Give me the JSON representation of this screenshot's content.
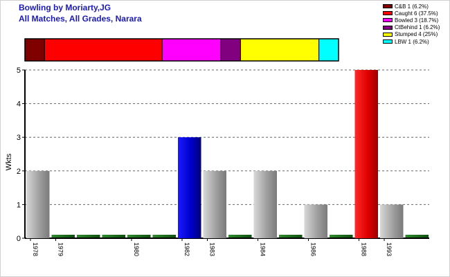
{
  "chart_data": [
    {
      "type": "bar",
      "title": "Bowling by Moriarty,JG",
      "subtitle": "All Matches, All Grades, Narara",
      "xlabel": "",
      "ylabel": "Wkts",
      "ylim": [
        0,
        5
      ],
      "yticks": [
        "0",
        "1",
        "2",
        "3",
        "4",
        "5"
      ],
      "grid": true,
      "categories": [
        "1978",
        "1979",
        "",
        "",
        "1980",
        "",
        "1982",
        "1983",
        "",
        "1984",
        "",
        "1986",
        "",
        "1988",
        "1993",
        ""
      ],
      "values": [
        2,
        0,
        0,
        0,
        0,
        0,
        3,
        2,
        0,
        2,
        0,
        1,
        0,
        5,
        1,
        0
      ],
      "bar_colors": [
        "#a8a8a8",
        "#1f6e1f",
        "#1f6e1f",
        "#1f6e1f",
        "#1f6e1f",
        "#1f6e1f",
        "#0000cc",
        "#a8a8a8",
        "#1f6e1f",
        "#a8a8a8",
        "#1f6e1f",
        "#a8a8a8",
        "#1f6e1f",
        "#ee0000",
        "#a8a8a8",
        "#1f6e1f"
      ]
    },
    {
      "type": "bar",
      "orientation": "horizontal-stacked",
      "title": "",
      "legend_position": "top-right",
      "series": [
        {
          "name": "C&B 1 (6.2%)",
          "value": 1,
          "color": "#800000"
        },
        {
          "name": "Caught 6 (37.5%)",
          "value": 6,
          "color": "#ff0000"
        },
        {
          "name": "Bowled 3 (18.7%)",
          "value": 3,
          "color": "#ff00ff"
        },
        {
          "name": "CtBehind 1 (6.2%)",
          "value": 1,
          "color": "#800080"
        },
        {
          "name": "Stumped 4 (25%)",
          "value": 4,
          "color": "#ffff00"
        },
        {
          "name": "LBW 1 (6.2%)",
          "value": 1,
          "color": "#00ffff"
        }
      ]
    }
  ]
}
